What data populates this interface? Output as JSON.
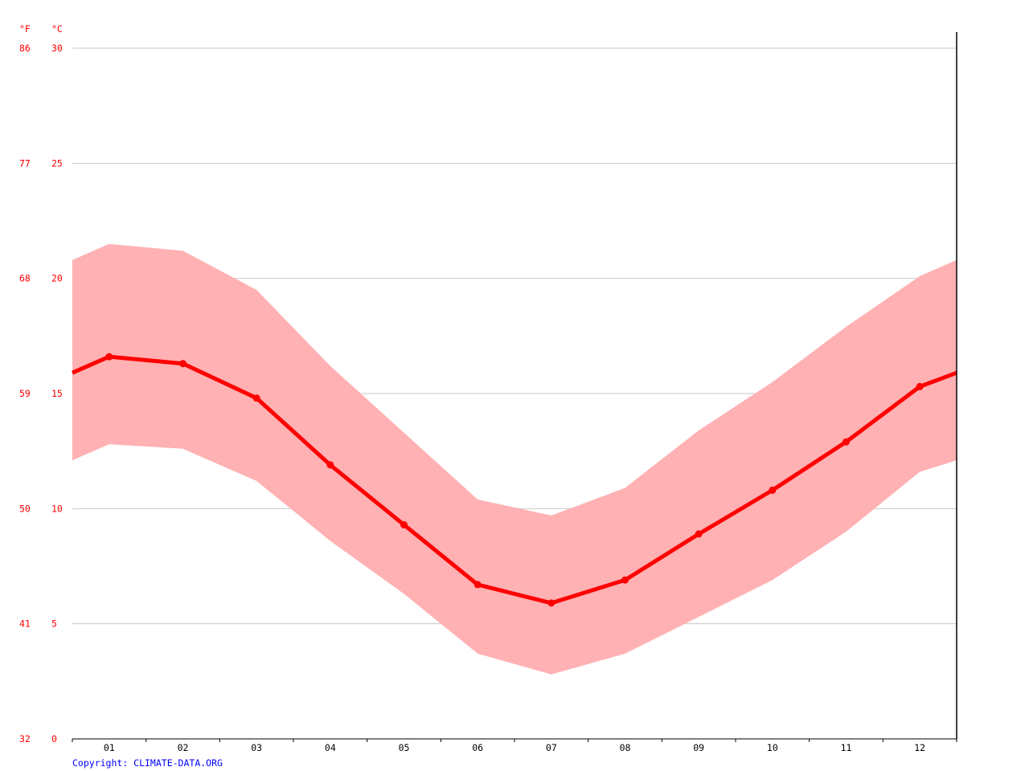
{
  "chart_data": {
    "type": "line",
    "unit_labels": {
      "fahrenheit": "°F",
      "celsius": "°C"
    },
    "categories": [
      "01",
      "02",
      "03",
      "04",
      "05",
      "06",
      "07",
      "08",
      "09",
      "10",
      "11",
      "12"
    ],
    "series": [
      {
        "values": [
          16.6,
          16.3,
          14.8,
          11.9,
          9.3,
          6.7,
          5.9,
          6.9,
          8.9,
          10.8,
          12.9,
          15.3
        ]
      }
    ],
    "band": {
      "max": [
        21.5,
        21.2,
        19.5,
        16.2,
        13.3,
        10.4,
        9.7,
        10.9,
        13.4,
        15.5,
        17.9,
        20.1
      ],
      "min": [
        12.8,
        12.6,
        11.2,
        8.6,
        6.3,
        3.7,
        2.8,
        3.7,
        5.3,
        6.9,
        9.0,
        11.6
      ]
    },
    "edge": {
      "start": {
        "mean": 15.9,
        "max": 20.8,
        "min": 12.1
      },
      "end": {
        "mean": 15.9,
        "max": 20.8,
        "min": 12.1
      }
    },
    "ylim": [
      0,
      30
    ],
    "yticks_c": [
      "0",
      "5",
      "10",
      "15",
      "20",
      "25",
      "30"
    ],
    "yticks_f": [
      "32",
      "41",
      "50",
      "59",
      "68",
      "77",
      "86"
    ],
    "grid": true,
    "colors": {
      "line": "#ff0000",
      "band": "#ffb1b3",
      "axis_text": "#ff0000",
      "grid": "#c8c8c8",
      "copyright": "#0000ff"
    }
  },
  "copyright": "Copyright: CLIMATE-DATA.ORG"
}
